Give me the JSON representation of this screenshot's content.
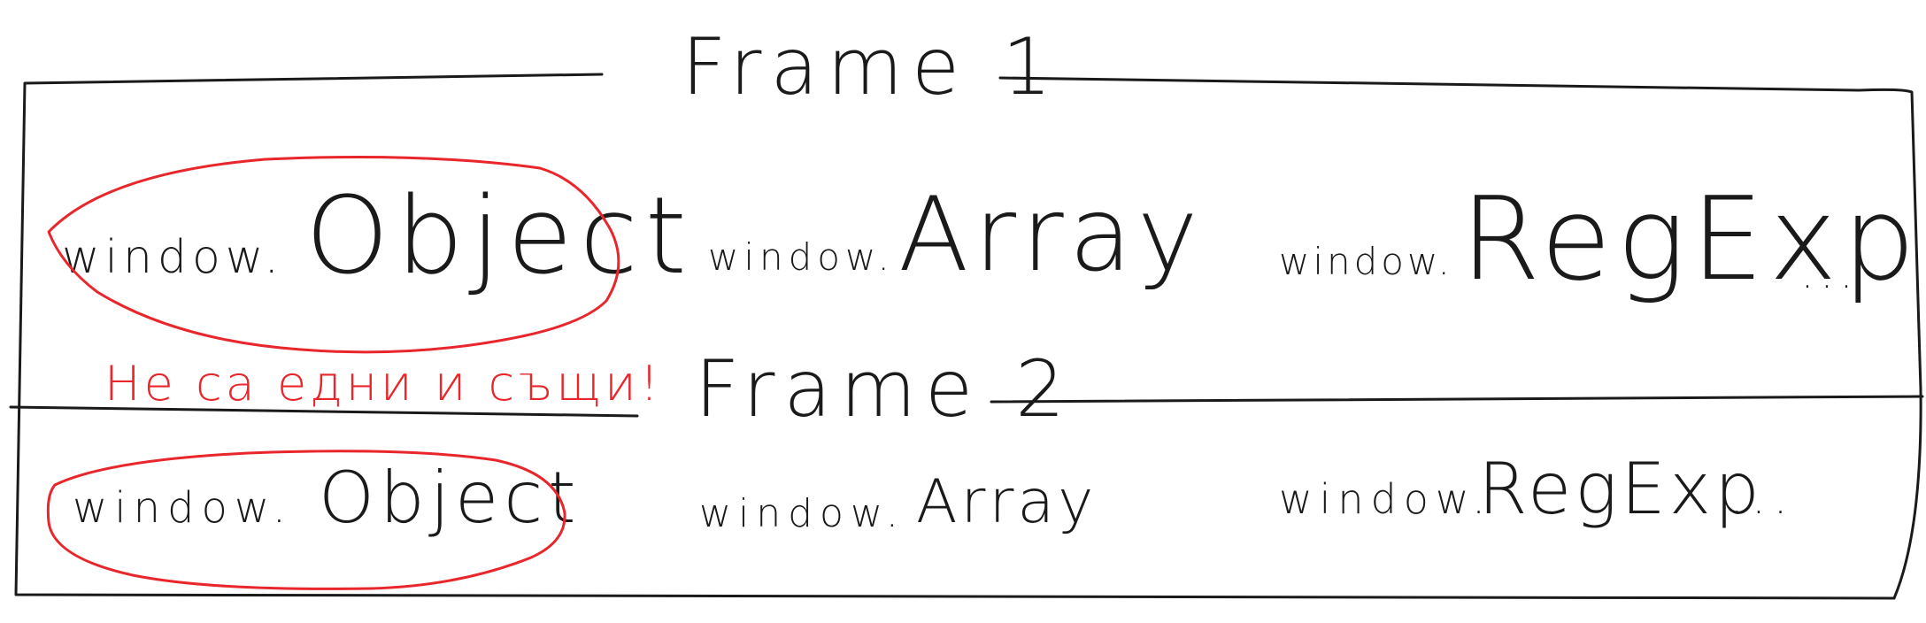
{
  "frame1": {
    "title": "Frame 1",
    "items": [
      {
        "prefix": "window.",
        "name": "Object"
      },
      {
        "prefix": "window.",
        "name": "Array"
      },
      {
        "prefix": "window.",
        "name": "RegExp",
        "suffix": "..."
      }
    ]
  },
  "frame2": {
    "title": "Frame 2",
    "items": [
      {
        "prefix": "window.",
        "name": "Object"
      },
      {
        "prefix": "window.",
        "name": "Array"
      },
      {
        "prefix": "window.",
        "name": "RegExp",
        "suffix": "..."
      }
    ]
  },
  "annotation": "Не са едни и същи!",
  "colors": {
    "ink": "#1a1a1a",
    "highlight": "#e8262b"
  }
}
